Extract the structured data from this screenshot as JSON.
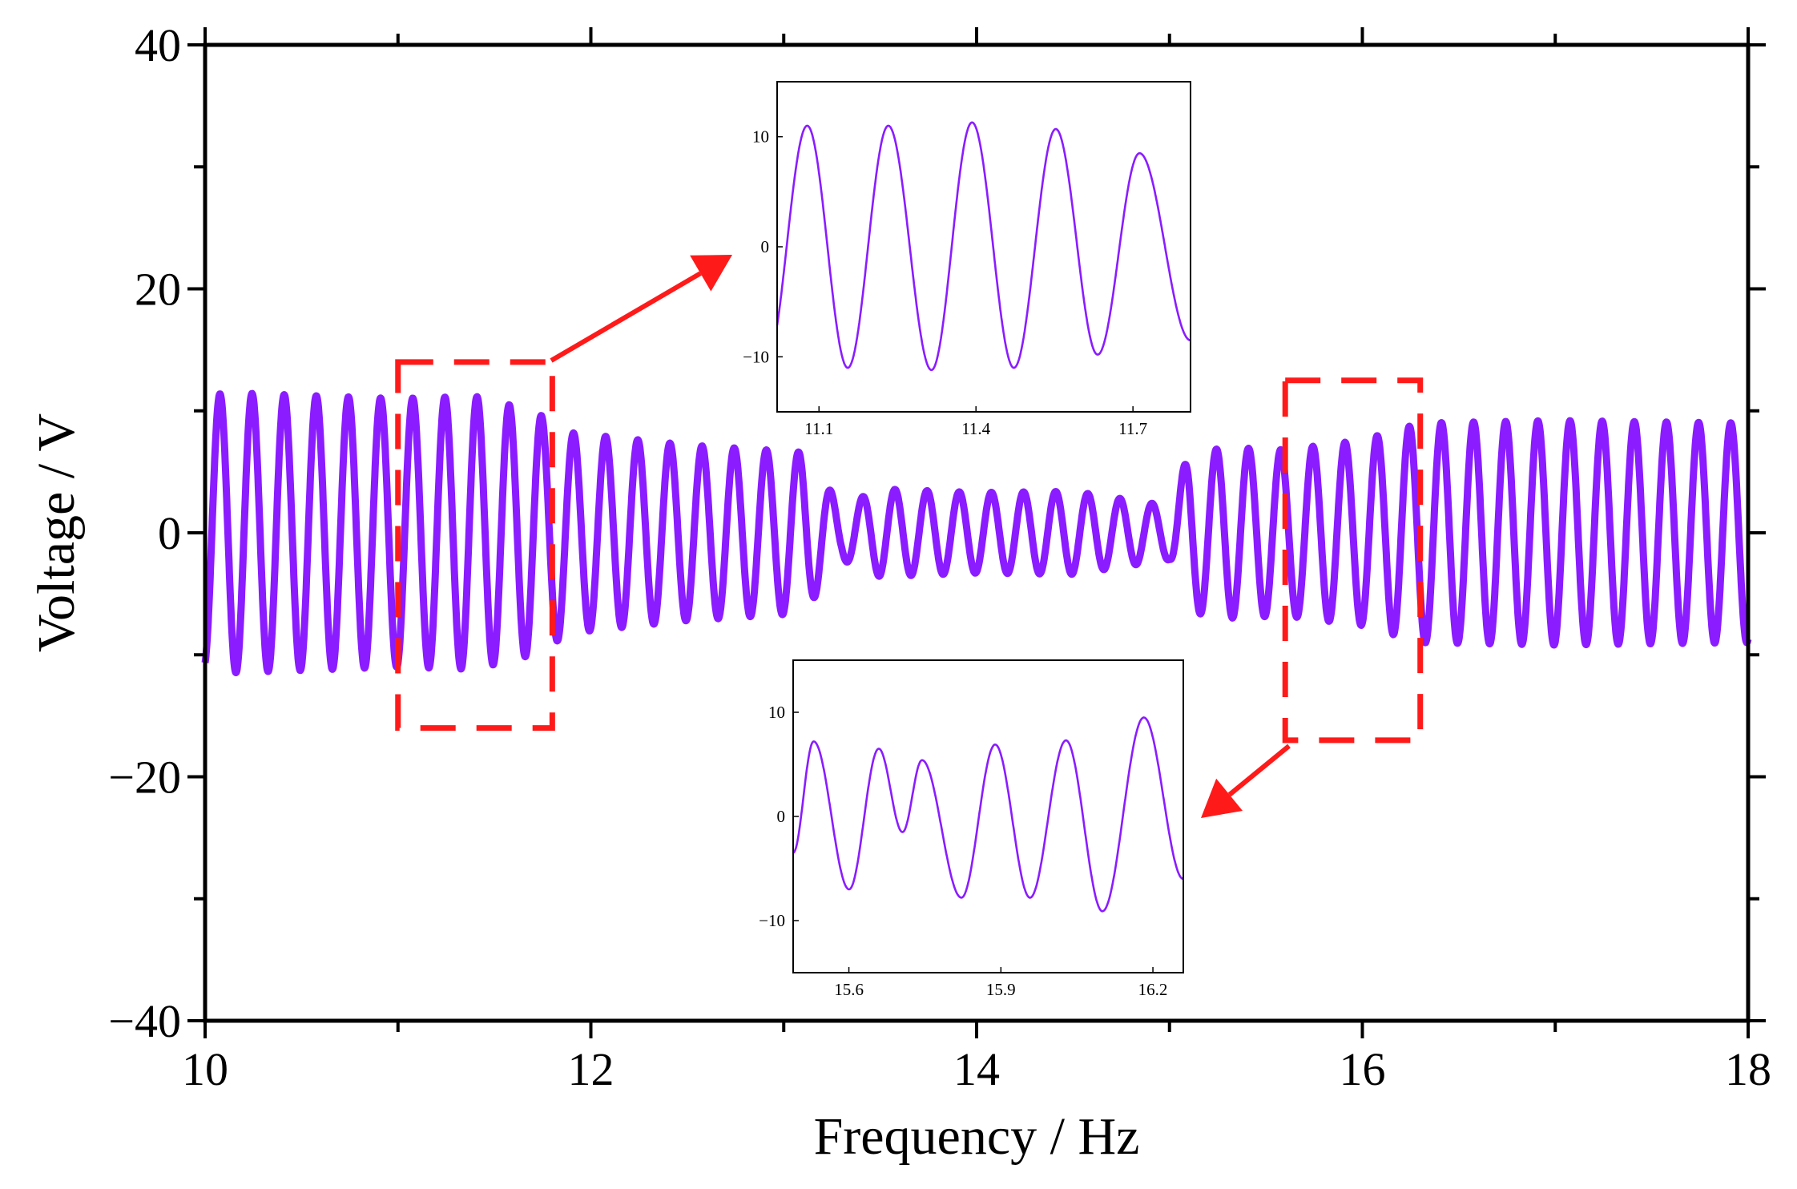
{
  "chart_data": {
    "type": "line",
    "main": {
      "xlabel": "Frequency / Hz",
      "ylabel": "Voltage / V",
      "xlim": [
        10,
        18
      ],
      "ylim": [
        -40,
        40
      ],
      "xticks": [
        "10",
        "12",
        "14",
        "16",
        "18"
      ],
      "yticks": [
        "40",
        "20",
        "0",
        "−20",
        "−40"
      ],
      "xtick_values": [
        10,
        12,
        14,
        16,
        18
      ],
      "ytick_values": [
        40,
        20,
        0,
        -20,
        -40
      ],
      "series": [
        {
          "name": "voltage",
          "color": "#8a1cff",
          "oscillation_frequency_per_hz": 6.0,
          "envelope": {
            "x": [
              10.0,
              10.1,
              11.0,
              11.4,
              11.7,
              11.9,
              12.5,
              13.1,
              13.3,
              13.5,
              14.0,
              14.5,
              15.0,
              15.1,
              15.3,
              15.6,
              16.0,
              16.3,
              17.0,
              18.0
            ],
            "amplitude": [
              11,
              11.5,
              11,
              11.2,
              10,
              8.2,
              7.2,
              6.6,
              2.2,
              3.6,
              3.3,
              3.4,
              2.2,
              6.5,
              7.0,
              6.8,
              7.6,
              9.0,
              9.2,
              9.0
            ]
          }
        }
      ]
    },
    "highlight_boxes": [
      {
        "name": "left-zoom-region",
        "x_range": [
          11.0,
          11.8
        ],
        "y_range": [
          -16,
          14
        ],
        "color": "#ff1a1a"
      },
      {
        "name": "right-zoom-region",
        "x_range": [
          15.6,
          16.3
        ],
        "y_range": [
          -17,
          12.5
        ],
        "color": "#ff1a1a"
      }
    ],
    "insets": [
      {
        "name": "inset-top",
        "xlim": [
          11.02,
          11.81
        ],
        "ylim": [
          -15,
          15
        ],
        "xticks": [
          "11.1",
          "11.4",
          "11.7"
        ],
        "yticks": [
          "10",
          "0",
          "−10"
        ],
        "xtick_values": [
          11.1,
          11.4,
          11.7
        ],
        "ytick_values": [
          10,
          0,
          -10
        ],
        "peaks": {
          "x": [
            11.0775,
            11.2325,
            11.3925,
            11.5525,
            11.7125
          ],
          "y": [
            11.0,
            11.0,
            11.3,
            10.7,
            8.5
          ]
        },
        "troughs": {
          "x": [
            11.0,
            11.155,
            11.315,
            11.4725,
            11.6325,
            11.81
          ],
          "y": [
            -10.5,
            -11.0,
            -11.2,
            -11.0,
            -9.8,
            -8.5
          ]
        }
      },
      {
        "name": "inset-bottom",
        "xlim": [
          15.49,
          16.26
        ],
        "ylim": [
          -15,
          15
        ],
        "xticks": [
          "15.6",
          "15.9",
          "16.2"
        ],
        "yticks": [
          "10",
          "0",
          "−10"
        ],
        "xtick_values": [
          15.6,
          15.9,
          16.2
        ],
        "ytick_values": [
          10,
          0,
          -10
        ],
        "peaks": {
          "x": [
            15.5305,
            15.659,
            15.7443,
            15.8887,
            16.0285,
            16.1821
          ],
          "y": [
            7.2,
            6.5,
            5.4,
            6.9,
            7.3,
            9.5
          ]
        },
        "troughs": {
          "x": [
            15.49,
            15.6004,
            15.7059,
            15.8221,
            15.9575,
            16.1004,
            16.26
          ],
          "y": [
            -3.5,
            -7.0,
            -1.5,
            -7.8,
            -7.8,
            -9.1,
            -6.0
          ]
        }
      }
    ],
    "arrows": [
      {
        "name": "arrow-to-top-inset",
        "color": "#ff1a1a"
      },
      {
        "name": "arrow-to-bottom-inset",
        "color": "#ff1a1a"
      }
    ]
  }
}
